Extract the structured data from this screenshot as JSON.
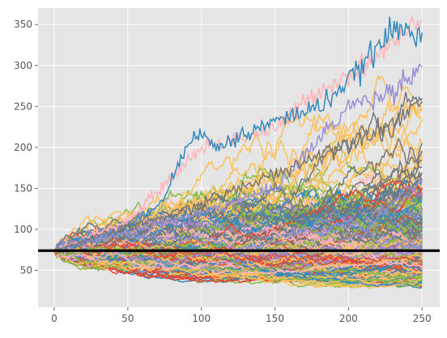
{
  "chart_data": {
    "type": "line",
    "title": "",
    "xlabel": "",
    "ylabel": "",
    "xlim": [
      -11,
      262
    ],
    "ylim": [
      5,
      370
    ],
    "xticks": [
      0,
      50,
      100,
      150,
      200,
      250
    ],
    "yticks": [
      50,
      100,
      150,
      200,
      250,
      300,
      350
    ],
    "style": "ggplot",
    "grid": true,
    "background": "#E5E5E5",
    "grid_color": "#FFFFFF",
    "reference_line": {
      "y": 74,
      "color": "#000000"
    },
    "simulation": {
      "description_values": {
        "num_paths": 500,
        "steps": 250,
        "start_value": 74
      },
      "palette": [
        "#E24A33",
        "#348ABD",
        "#988ED5",
        "#777777",
        "#FBC15E",
        "#8EBA42",
        "#FFB5B8"
      ],
      "highlighted_paths": [
        {
          "color": "#FFB5B8",
          "end": 355,
          "points": [
            [
              0,
              74
            ],
            [
              50,
              110
            ],
            [
              100,
              200
            ],
            [
              150,
              222
            ],
            [
              180,
              270
            ],
            [
              200,
              288
            ],
            [
              225,
              320
            ],
            [
              250,
              355
            ]
          ]
        },
        {
          "color": "#348ABD",
          "end": 340,
          "points": [
            [
              0,
              74
            ],
            [
              50,
              100
            ],
            [
              75,
              140
            ],
            [
              95,
              222
            ],
            [
              110,
              200
            ],
            [
              150,
              232
            ],
            [
              180,
              250
            ],
            [
              200,
              280
            ],
            [
              230,
              343
            ],
            [
              250,
              340
            ]
          ]
        },
        {
          "color": "#988ED5",
          "end": 298,
          "points": [
            [
              0,
              74
            ],
            [
              100,
              120
            ],
            [
              150,
              150
            ],
            [
              175,
              200
            ],
            [
              200,
              250
            ],
            [
              225,
              265
            ],
            [
              250,
              298
            ]
          ]
        },
        {
          "color": "#777777",
          "end": 260,
          "points": [
            [
              0,
              74
            ],
            [
              100,
              130
            ],
            [
              150,
              168
            ],
            [
              200,
              205
            ],
            [
              230,
              230
            ],
            [
              250,
              260
            ]
          ]
        }
      ]
    }
  }
}
